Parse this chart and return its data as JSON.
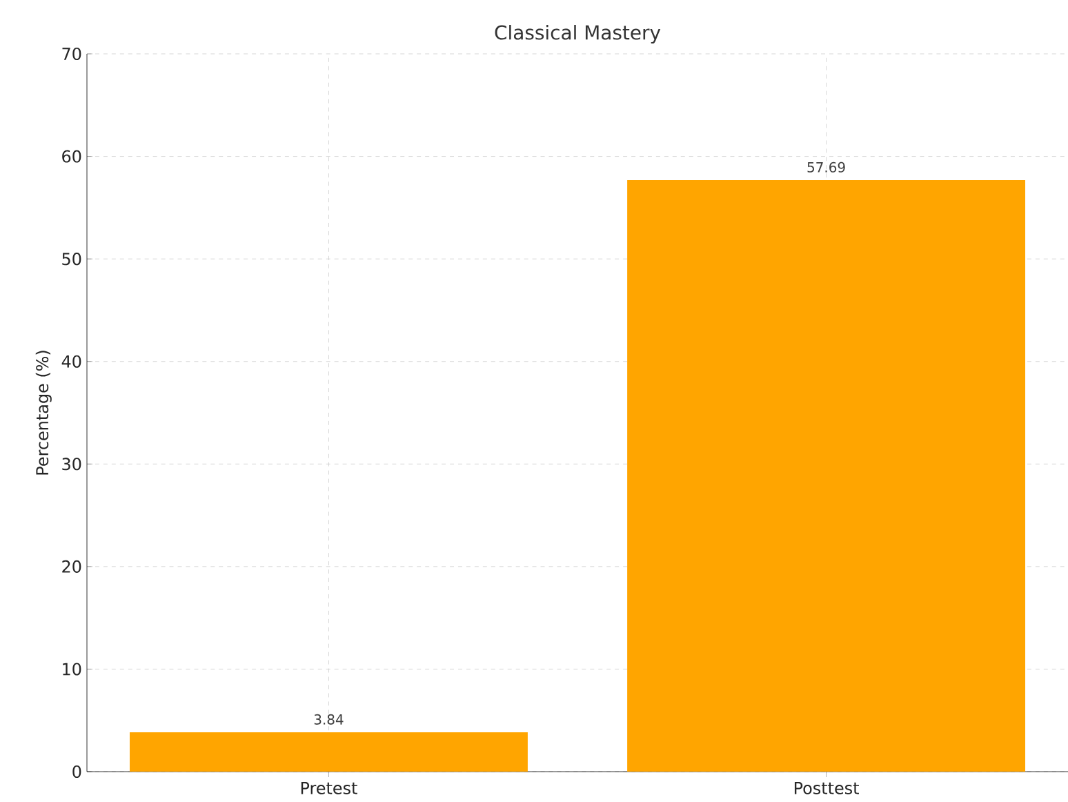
{
  "chart_data": {
    "type": "bar",
    "title": "Classical Mastery",
    "ylabel": "Percentage (%)",
    "categories": [
      "Pretest",
      "Posttest"
    ],
    "values": [
      3.84,
      57.69
    ],
    "color": "#ffa500",
    "ylim": [
      0,
      70
    ],
    "yticks": [
      0,
      10,
      20,
      30,
      40,
      50,
      60,
      70
    ],
    "grid": true,
    "data_labels": true
  }
}
